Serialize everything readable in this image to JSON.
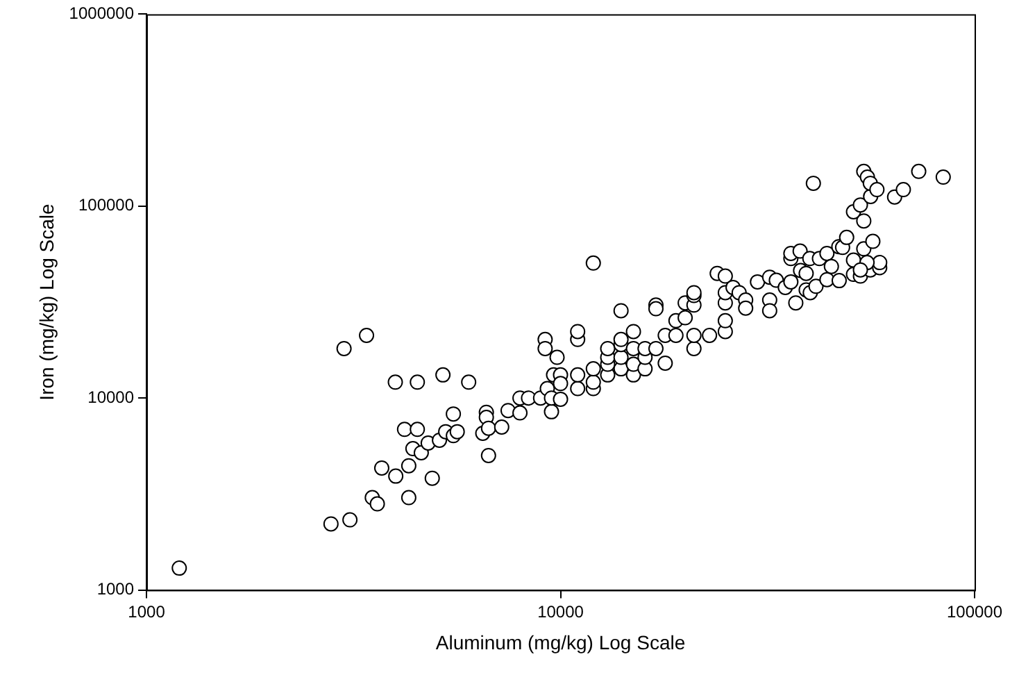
{
  "chart_data": {
    "type": "scatter",
    "xlabel": "Aluminum (mg/kg) Log Scale",
    "ylabel": "Iron (mg/kg) Log Scale",
    "log": "xy",
    "xlim": [
      1000,
      100000
    ],
    "ylim": [
      1000,
      1000000
    ],
    "xticks": [
      1000,
      10000,
      100000
    ],
    "yticks": [
      1000,
      10000,
      100000,
      1000000
    ],
    "grid": false,
    "legend": false,
    "marker": "circle",
    "series": [
      {
        "color": "#000000",
        "x": [
          1200,
          2790,
          3100,
          3000,
          3400,
          3510,
          3610,
          3700,
          3990,
          4000,
          4200,
          4300,
          4300,
          4400,
          4510,
          4510,
          4610,
          4790,
          4900,
          5100,
          5200,
          5280,
          5510,
          5510,
          5630,
          6000,
          6490,
          6620,
          6620,
          6700,
          6700,
          7210,
          7470,
          7980,
          7980,
          8370,
          8950,
          9180,
          9180,
          9290,
          9510,
          9510,
          9810,
          9620,
          10000,
          10000,
          10000,
          11000,
          11000,
          11000,
          11000,
          12000,
          12000,
          12000,
          12000,
          13000,
          13000,
          13000,
          13000,
          14000,
          14000,
          14000,
          14000,
          14000,
          15000,
          15000,
          15000,
          15000,
          16000,
          16000,
          16000,
          17000,
          17000,
          17000,
          17900,
          17900,
          19000,
          20000,
          20000,
          19000,
          21000,
          21000,
          21000,
          21000,
          21000,
          22900,
          23900,
          25000,
          25000,
          25000,
          25000,
          25000,
          26100,
          27000,
          28000,
          28000,
          29900,
          32000,
          32000,
          32000,
          33200,
          34900,
          36000,
          36000,
          36000,
          37000,
          37900,
          38000,
          39200,
          39200,
          40100,
          40000,
          40800,
          41400,
          42200,
          44000,
          44000,
          45100,
          47100,
          47000,
          48000,
          49100,
          51000,
          51000,
          51000,
          53000,
          53000,
          54000,
          54000,
          54000,
          55100,
          56100,
          56000,
          56000,
          56800,
          59000,
          59000,
          58100,
          64100,
          67300,
          73300,
          84000,
          55000,
          53000
        ],
        "values": [
          1300,
          2210,
          2320,
          18100,
          21200,
          3030,
          2810,
          4320,
          12100,
          3920,
          6870,
          4440,
          3030,
          5450,
          6870,
          12100,
          5190,
          5830,
          3820,
          6030,
          13200,
          6680,
          8260,
          6370,
          6680,
          12100,
          6550,
          8430,
          7930,
          5020,
          6960,
          7060,
          8610,
          8370,
          10000,
          10000,
          10000,
          20200,
          18100,
          11200,
          8490,
          10000,
          16300,
          13200,
          13200,
          11900,
          9860,
          11200,
          13200,
          20200,
          22200,
          11200,
          12100,
          14200,
          50500,
          13200,
          15000,
          16300,
          18100,
          14200,
          16300,
          19000,
          20200,
          28500,
          13200,
          15000,
          18100,
          22200,
          14200,
          16300,
          18100,
          18100,
          30500,
          29200,
          15200,
          21200,
          25300,
          31300,
          26200,
          21200,
          18100,
          21200,
          30500,
          34200,
          35400,
          21200,
          44600,
          22200,
          25300,
          31300,
          35400,
          43200,
          37700,
          35400,
          32400,
          29400,
          40300,
          42600,
          32400,
          28500,
          41100,
          37700,
          40300,
          53300,
          56700,
          31300,
          58300,
          46200,
          44600,
          36600,
          35400,
          53300,
          131500,
          38200,
          53300,
          41400,
          56700,
          48500,
          40900,
          61500,
          60900,
          68700,
          44100,
          52300,
          93400,
          101400,
          43200,
          59900,
          83700,
          151700,
          141600,
          112300,
          131500,
          46500,
          65500,
          47800,
          50800,
          121900,
          111500,
          121900,
          151700,
          141600,
          50800,
          46500
        ]
      }
    ]
  }
}
